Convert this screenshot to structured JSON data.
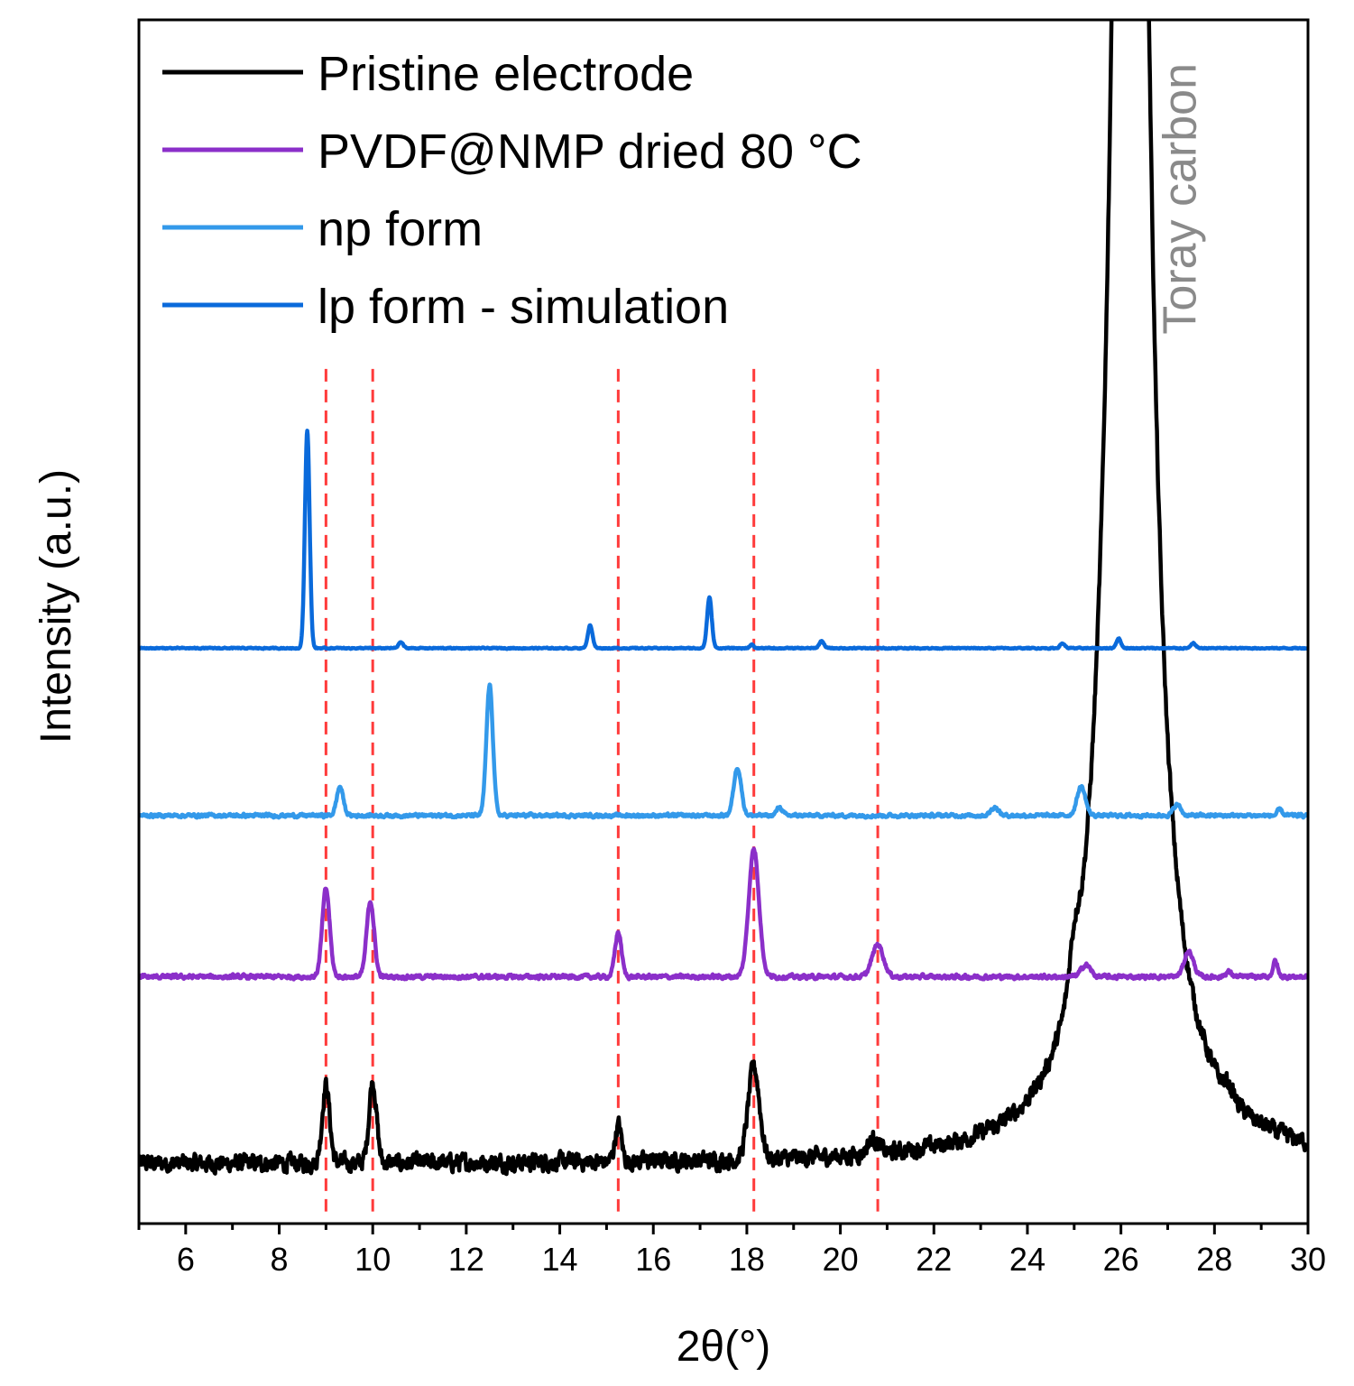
{
  "chart_data": {
    "type": "line",
    "title": "",
    "xlabel": "2θ(°)",
    "ylabel": "Intensity (a.u.)",
    "xlim": [
      5,
      30
    ],
    "ylim": [
      0,
      1.0
    ],
    "xticks": [
      6,
      8,
      10,
      12,
      14,
      16,
      18,
      20,
      22,
      24,
      26,
      28,
      30
    ],
    "xtick_labels": [
      "6",
      "8",
      "10",
      "12",
      "14",
      "16",
      "18",
      "20",
      "22",
      "24",
      "26",
      "28",
      "30"
    ],
    "y_tick_labels_shown": false,
    "grid": false,
    "legend_position": "top-left",
    "reference_lines": {
      "style": "dashed",
      "color": "#ff3b3b",
      "x": [
        9.0,
        10.0,
        15.25,
        18.15,
        20.8
      ]
    },
    "annotation": {
      "text": "Toray carbon",
      "x": 27.6,
      "color": "#8a8a8a",
      "rotation": -90
    },
    "series": [
      {
        "name": "Pristine electrode",
        "color": "#000000",
        "baseline": 0.06,
        "noise": 0.006,
        "peaks": [
          {
            "x": 9.0,
            "h": 0.065,
            "w": 0.08
          },
          {
            "x": 10.0,
            "h": 0.068,
            "w": 0.08
          },
          {
            "x": 15.25,
            "h": 0.03,
            "w": 0.07
          },
          {
            "x": 18.15,
            "h": 0.077,
            "w": 0.12
          },
          {
            "x": 20.7,
            "h": 0.012,
            "w": 0.12
          },
          {
            "x": 26.2,
            "h": 2.2,
            "w": 0.35,
            "shape": "lorentz"
          },
          {
            "x": 25.0,
            "h": 0.03,
            "w": 0.1
          },
          {
            "x": 28.3,
            "h": 0.008,
            "w": 0.1
          }
        ]
      },
      {
        "name": "PVDF@NMP dried 80 °C",
        "color": "#8b2fc9",
        "baseline": 0.205,
        "noise": 0.0015,
        "peaks": [
          {
            "x": 9.0,
            "h": 0.073,
            "w": 0.08
          },
          {
            "x": 9.95,
            "h": 0.063,
            "w": 0.08
          },
          {
            "x": 15.25,
            "h": 0.037,
            "w": 0.07
          },
          {
            "x": 18.15,
            "h": 0.106,
            "w": 0.11
          },
          {
            "x": 20.8,
            "h": 0.027,
            "w": 0.12
          },
          {
            "x": 25.25,
            "h": 0.01,
            "w": 0.1
          },
          {
            "x": 27.45,
            "h": 0.021,
            "w": 0.1
          },
          {
            "x": 28.3,
            "h": 0.004,
            "w": 0.07
          },
          {
            "x": 29.3,
            "h": 0.013,
            "w": 0.05
          }
        ]
      },
      {
        "name": "np form",
        "color": "#3399ea",
        "baseline": 0.339,
        "noise": 0.0012,
        "peaks": [
          {
            "x": 9.3,
            "h": 0.024,
            "w": 0.07
          },
          {
            "x": 12.5,
            "h": 0.108,
            "w": 0.07
          },
          {
            "x": 17.8,
            "h": 0.04,
            "w": 0.08
          },
          {
            "x": 18.7,
            "h": 0.007,
            "w": 0.06
          },
          {
            "x": 23.3,
            "h": 0.007,
            "w": 0.08
          },
          {
            "x": 25.15,
            "h": 0.024,
            "w": 0.09
          },
          {
            "x": 27.2,
            "h": 0.009,
            "w": 0.08
          },
          {
            "x": 29.4,
            "h": 0.005,
            "w": 0.05
          }
        ]
      },
      {
        "name": "lp form - simulation",
        "color": "#0a6adb",
        "baseline": 0.478,
        "noise": 0.0004,
        "peaks": [
          {
            "x": 8.6,
            "h": 0.181,
            "w": 0.05
          },
          {
            "x": 10.6,
            "h": 0.005,
            "w": 0.05
          },
          {
            "x": 14.65,
            "h": 0.019,
            "w": 0.05
          },
          {
            "x": 17.2,
            "h": 0.042,
            "w": 0.05
          },
          {
            "x": 18.1,
            "h": 0.003,
            "w": 0.04
          },
          {
            "x": 19.6,
            "h": 0.006,
            "w": 0.05
          },
          {
            "x": 24.75,
            "h": 0.004,
            "w": 0.05
          },
          {
            "x": 25.95,
            "h": 0.008,
            "w": 0.05
          },
          {
            "x": 27.55,
            "h": 0.004,
            "w": 0.05
          }
        ]
      }
    ]
  }
}
